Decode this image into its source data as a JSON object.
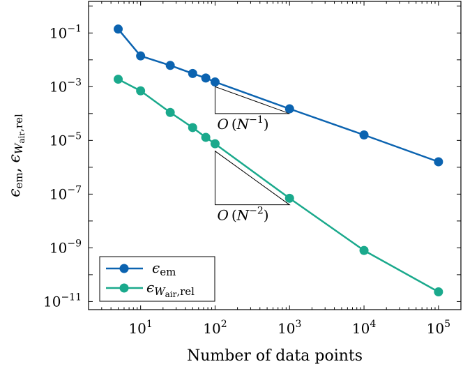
{
  "chart_data": {
    "type": "line",
    "xscale": "log",
    "yscale": "log",
    "xlim": [
      2,
      200000
    ],
    "ylim": [
      5e-12,
      1.5
    ],
    "xlabel": "Number of data points",
    "ylabel": "ϵem, ϵWair,rel",
    "x_ticks": [
      10,
      100,
      1000,
      10000,
      100000
    ],
    "y_ticks": [
      0.1,
      0.001,
      1e-05,
      1e-07,
      1e-09,
      1e-11
    ],
    "x_tick_labels": [
      "10^1",
      "10^2",
      "10^3",
      "10^4",
      "10^5"
    ],
    "y_tick_labels": [
      "10^-1",
      "10^-3",
      "10^-5",
      "10^-7",
      "10^-9",
      "10^-11"
    ],
    "legend_position": "bottom-left",
    "series": [
      {
        "name": "ϵem",
        "color": "#0b63b0",
        "x": [
          5,
          10,
          25,
          50,
          75,
          100,
          1000,
          10000,
          100000
        ],
        "y": [
          0.14,
          0.014,
          0.0062,
          0.0031,
          0.0021,
          0.0015,
          0.00015,
          1.6e-05,
          1.6e-06
        ]
      },
      {
        "name": "ϵWair,rel",
        "color": "#1aa98c",
        "x": [
          5,
          10,
          25,
          50,
          75,
          100,
          1000,
          10000,
          100000
        ],
        "y": [
          0.0019,
          0.0007,
          0.00011,
          3e-05,
          1.3e-05,
          7.5e-06,
          7e-08,
          8e-10,
          2.3e-11
        ]
      }
    ],
    "annotations": [
      {
        "text": "O(N^-1)",
        "slope": -1,
        "x_start": 100,
        "x_end": 1000,
        "y_start": 0.001
      },
      {
        "text": "O(N^-2)",
        "slope": -2,
        "x_start": 100,
        "x_end": 1000,
        "y_start": 4e-06
      }
    ]
  }
}
